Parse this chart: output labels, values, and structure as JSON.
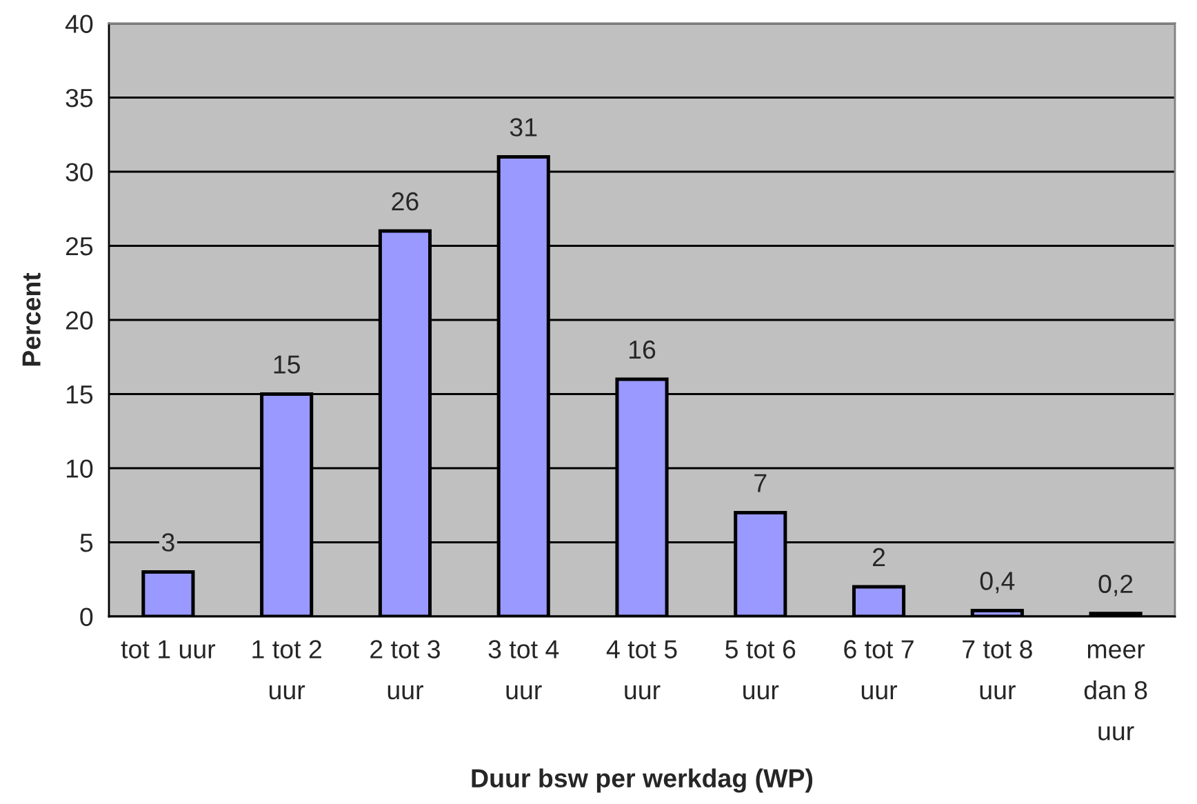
{
  "chart_data": {
    "type": "bar",
    "xlabel": "Duur bsw per werkdag (WP)",
    "ylabel": "Percent",
    "categories": [
      "tot 1 uur",
      "1 tot 2\nuur",
      "2 tot 3\nuur",
      "3 tot 4\nuur",
      "4 tot 5\nuur",
      "5 tot 6\nuur",
      "6 tot 7\nuur",
      "7 tot 8\nuur",
      "meer\ndan 8\nuur"
    ],
    "values": [
      3,
      15,
      26,
      31,
      16,
      7,
      2,
      0.4,
      0.2
    ],
    "value_labels": [
      "3",
      "15",
      "26",
      "31",
      "16",
      "7",
      "2",
      "0,4",
      "0,2"
    ],
    "color": "#9999ff",
    "ylim": [
      0,
      40
    ],
    "yticks": [
      0,
      5,
      10,
      15,
      20,
      25,
      30,
      35,
      40
    ],
    "grid": "y"
  }
}
